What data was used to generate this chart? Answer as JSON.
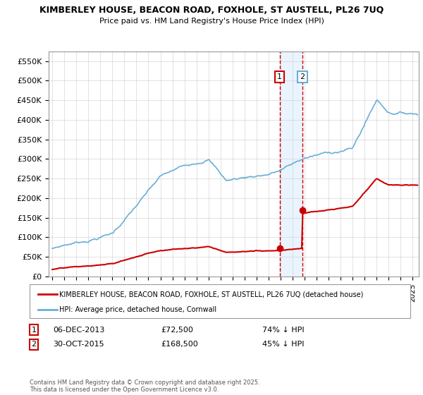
{
  "title": "KIMBERLEY HOUSE, BEACON ROAD, FOXHOLE, ST AUSTELL, PL26 7UQ",
  "subtitle": "Price paid vs. HM Land Registry's House Price Index (HPI)",
  "ylim": [
    0,
    575000
  ],
  "yticks": [
    0,
    50000,
    100000,
    150000,
    200000,
    250000,
    300000,
    350000,
    400000,
    450000,
    500000,
    550000
  ],
  "ytick_labels": [
    "£0",
    "£50K",
    "£100K",
    "£150K",
    "£200K",
    "£250K",
    "£300K",
    "£350K",
    "£400K",
    "£450K",
    "£500K",
    "£550K"
  ],
  "hpi_color": "#6baed6",
  "price_color": "#cc0000",
  "legend_hpi": "HPI: Average price, detached house, Cornwall",
  "legend_price": "KIMBERLEY HOUSE, BEACON ROAD, FOXHOLE, ST AUSTELL, PL26 7UQ (detached house)",
  "sale1_date": "06-DEC-2013",
  "sale1_price": 72500,
  "sale1_label": "74% ↓ HPI",
  "sale2_date": "30-OCT-2015",
  "sale2_price": 168500,
  "sale2_label": "45% ↓ HPI",
  "sale1_x": 2013.92,
  "sale2_x": 2015.83,
  "vline1_x": 2013.92,
  "vline2_x": 2015.83,
  "footnote": "Contains HM Land Registry data © Crown copyright and database right 2025.\nThis data is licensed under the Open Government Licence v3.0.",
  "background_color": "#ffffff",
  "plot_bg_color": "#ffffff",
  "grid_color": "#cccccc",
  "shade_color": "#ddeeff",
  "xlim_left": 1994.7,
  "xlim_right": 2025.5
}
